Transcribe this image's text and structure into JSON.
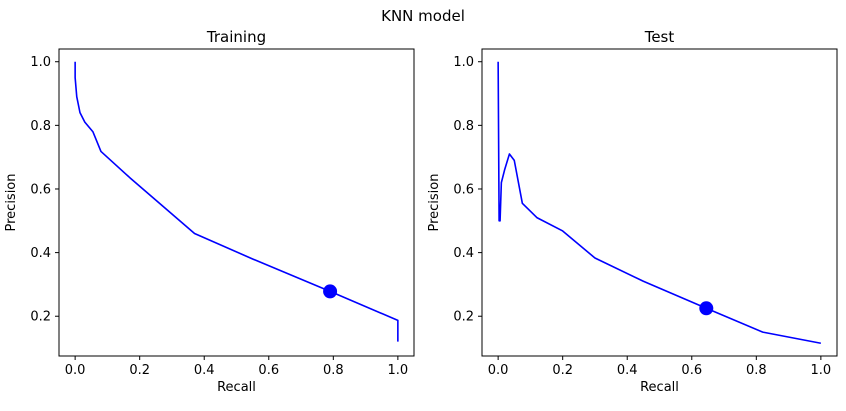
{
  "figure": {
    "suptitle": "KNN model"
  },
  "chart_data": [
    {
      "type": "line",
      "title": "Training",
      "xlabel": "Recall",
      "ylabel": "Precision",
      "xlim": [
        -0.05,
        1.05
      ],
      "ylim": [
        0.075,
        1.04
      ],
      "xticks": [
        0.0,
        0.2,
        0.4,
        0.6,
        0.8,
        1.0
      ],
      "yticks": [
        0.2,
        0.4,
        0.6,
        0.8,
        1.0
      ],
      "grid": false,
      "series": [
        {
          "color": "#0000ff",
          "x": [
            0.0,
            0.0,
            0.005,
            0.015,
            0.03,
            0.055,
            0.08,
            0.17,
            0.37,
            0.55,
            0.79,
            1.0,
            1.0
          ],
          "y": [
            1.0,
            0.95,
            0.89,
            0.84,
            0.81,
            0.78,
            0.718,
            0.635,
            0.46,
            0.38,
            0.278,
            0.187,
            0.12
          ]
        }
      ],
      "marker": {
        "x": 0.79,
        "y": 0.278,
        "color": "#0000ff"
      }
    },
    {
      "type": "line",
      "title": "Test",
      "xlabel": "Recall",
      "ylabel": "Precision",
      "xlim": [
        -0.05,
        1.05
      ],
      "ylim": [
        0.075,
        1.04
      ],
      "xticks": [
        0.0,
        0.2,
        0.4,
        0.6,
        0.8,
        1.0
      ],
      "yticks": [
        0.2,
        0.4,
        0.6,
        0.8,
        1.0
      ],
      "grid": false,
      "series": [
        {
          "color": "#0000ff",
          "x": [
            0.0,
            0.003,
            0.006,
            0.01,
            0.02,
            0.035,
            0.05,
            0.075,
            0.12,
            0.2,
            0.3,
            0.45,
            0.645,
            0.82,
            1.0
          ],
          "y": [
            1.0,
            0.5,
            0.5,
            0.62,
            0.66,
            0.71,
            0.69,
            0.555,
            0.51,
            0.468,
            0.383,
            0.31,
            0.225,
            0.15,
            0.115
          ]
        }
      ],
      "marker": {
        "x": 0.645,
        "y": 0.225,
        "color": "#0000ff"
      }
    }
  ]
}
